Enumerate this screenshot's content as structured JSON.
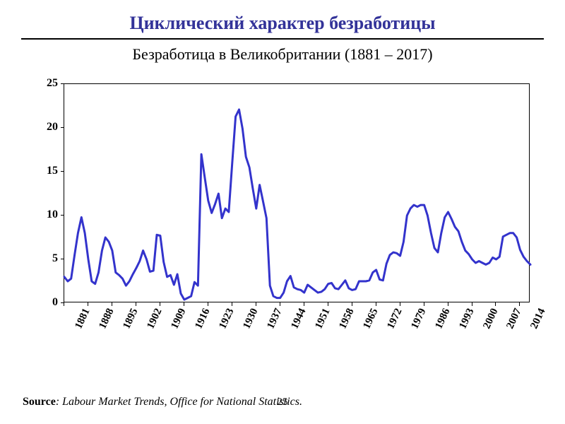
{
  "title": {
    "text": "Циклический характер безработицы",
    "color": "#333399",
    "fontsize": 26
  },
  "subtitle": {
    "text": "Безработица в Великобритании (1881 – 2017)",
    "color": "#000000",
    "fontsize": 22
  },
  "hr_color": "#000000",
  "page_number": "25",
  "source": {
    "label": "Source",
    "text": ": Labour Market Trends, Office for National Statistics."
  },
  "chart": {
    "type": "line",
    "background_color": "#ffffff",
    "border_color": "#000000",
    "line_color": "#3333cc",
    "line_width": 3,
    "ylim": [
      0,
      25
    ],
    "ytick_step": 5,
    "yticks": [
      0,
      5,
      10,
      15,
      20,
      25
    ],
    "ytick_fontsize": 16,
    "xlim": [
      1881,
      2017
    ],
    "xtick_step": 7,
    "xticks": [
      1881,
      1888,
      1895,
      1902,
      1909,
      1916,
      1923,
      1930,
      1937,
      1944,
      1951,
      1958,
      1965,
      1972,
      1979,
      1986,
      1993,
      2000,
      2007,
      2014
    ],
    "xtick_rotation": -65,
    "xtick_fontsize": 15,
    "series": [
      {
        "x": 1881,
        "y": 3.0
      },
      {
        "x": 1882,
        "y": 2.5
      },
      {
        "x": 1883,
        "y": 2.8
      },
      {
        "x": 1884,
        "y": 5.5
      },
      {
        "x": 1885,
        "y": 8.0
      },
      {
        "x": 1886,
        "y": 9.8
      },
      {
        "x": 1887,
        "y": 8.0
      },
      {
        "x": 1888,
        "y": 5.0
      },
      {
        "x": 1889,
        "y": 2.5
      },
      {
        "x": 1890,
        "y": 2.2
      },
      {
        "x": 1891,
        "y": 3.5
      },
      {
        "x": 1892,
        "y": 6.0
      },
      {
        "x": 1893,
        "y": 7.5
      },
      {
        "x": 1894,
        "y": 7.0
      },
      {
        "x": 1895,
        "y": 6.0
      },
      {
        "x": 1896,
        "y": 3.5
      },
      {
        "x": 1897,
        "y": 3.2
      },
      {
        "x": 1898,
        "y": 2.8
      },
      {
        "x": 1899,
        "y": 2.0
      },
      {
        "x": 1900,
        "y": 2.5
      },
      {
        "x": 1901,
        "y": 3.3
      },
      {
        "x": 1902,
        "y": 4.0
      },
      {
        "x": 1903,
        "y": 4.8
      },
      {
        "x": 1904,
        "y": 6.0
      },
      {
        "x": 1905,
        "y": 5.0
      },
      {
        "x": 1906,
        "y": 3.6
      },
      {
        "x": 1907,
        "y": 3.7
      },
      {
        "x": 1908,
        "y": 7.8
      },
      {
        "x": 1909,
        "y": 7.7
      },
      {
        "x": 1910,
        "y": 4.7
      },
      {
        "x": 1911,
        "y": 3.0
      },
      {
        "x": 1912,
        "y": 3.2
      },
      {
        "x": 1913,
        "y": 2.1
      },
      {
        "x": 1914,
        "y": 3.3
      },
      {
        "x": 1915,
        "y": 1.1
      },
      {
        "x": 1916,
        "y": 0.4
      },
      {
        "x": 1917,
        "y": 0.6
      },
      {
        "x": 1918,
        "y": 0.8
      },
      {
        "x": 1919,
        "y": 2.4
      },
      {
        "x": 1920,
        "y": 2.0
      },
      {
        "x": 1921,
        "y": 17.0
      },
      {
        "x": 1922,
        "y": 14.3
      },
      {
        "x": 1923,
        "y": 11.7
      },
      {
        "x": 1924,
        "y": 10.3
      },
      {
        "x": 1925,
        "y": 11.3
      },
      {
        "x": 1926,
        "y": 12.5
      },
      {
        "x": 1927,
        "y": 9.7
      },
      {
        "x": 1928,
        "y": 10.8
      },
      {
        "x": 1929,
        "y": 10.4
      },
      {
        "x": 1930,
        "y": 16.0
      },
      {
        "x": 1931,
        "y": 21.3
      },
      {
        "x": 1932,
        "y": 22.1
      },
      {
        "x": 1933,
        "y": 19.9
      },
      {
        "x": 1934,
        "y": 16.7
      },
      {
        "x": 1935,
        "y": 15.5
      },
      {
        "x": 1936,
        "y": 13.1
      },
      {
        "x": 1937,
        "y": 10.8
      },
      {
        "x": 1938,
        "y": 13.5
      },
      {
        "x": 1939,
        "y": 11.6
      },
      {
        "x": 1940,
        "y": 9.7
      },
      {
        "x": 1941,
        "y": 2.0
      },
      {
        "x": 1942,
        "y": 0.8
      },
      {
        "x": 1943,
        "y": 0.6
      },
      {
        "x": 1944,
        "y": 0.6
      },
      {
        "x": 1945,
        "y": 1.2
      },
      {
        "x": 1946,
        "y": 2.5
      },
      {
        "x": 1947,
        "y": 3.1
      },
      {
        "x": 1948,
        "y": 1.8
      },
      {
        "x": 1949,
        "y": 1.6
      },
      {
        "x": 1950,
        "y": 1.5
      },
      {
        "x": 1951,
        "y": 1.2
      },
      {
        "x": 1952,
        "y": 2.1
      },
      {
        "x": 1953,
        "y": 1.8
      },
      {
        "x": 1954,
        "y": 1.5
      },
      {
        "x": 1955,
        "y": 1.2
      },
      {
        "x": 1956,
        "y": 1.3
      },
      {
        "x": 1957,
        "y": 1.6
      },
      {
        "x": 1958,
        "y": 2.2
      },
      {
        "x": 1959,
        "y": 2.3
      },
      {
        "x": 1960,
        "y": 1.7
      },
      {
        "x": 1961,
        "y": 1.6
      },
      {
        "x": 1962,
        "y": 2.1
      },
      {
        "x": 1963,
        "y": 2.6
      },
      {
        "x": 1964,
        "y": 1.7
      },
      {
        "x": 1965,
        "y": 1.5
      },
      {
        "x": 1966,
        "y": 1.6
      },
      {
        "x": 1967,
        "y": 2.5
      },
      {
        "x": 1968,
        "y": 2.5
      },
      {
        "x": 1969,
        "y": 2.5
      },
      {
        "x": 1970,
        "y": 2.6
      },
      {
        "x": 1971,
        "y": 3.5
      },
      {
        "x": 1972,
        "y": 3.8
      },
      {
        "x": 1973,
        "y": 2.7
      },
      {
        "x": 1974,
        "y": 2.6
      },
      {
        "x": 1975,
        "y": 4.5
      },
      {
        "x": 1976,
        "y": 5.5
      },
      {
        "x": 1977,
        "y": 5.8
      },
      {
        "x": 1978,
        "y": 5.7
      },
      {
        "x": 1979,
        "y": 5.4
      },
      {
        "x": 1980,
        "y": 7.0
      },
      {
        "x": 1981,
        "y": 10.0
      },
      {
        "x": 1982,
        "y": 10.8
      },
      {
        "x": 1983,
        "y": 11.2
      },
      {
        "x": 1984,
        "y": 11.0
      },
      {
        "x": 1985,
        "y": 11.2
      },
      {
        "x": 1986,
        "y": 11.2
      },
      {
        "x": 1987,
        "y": 10.0
      },
      {
        "x": 1988,
        "y": 8.0
      },
      {
        "x": 1989,
        "y": 6.3
      },
      {
        "x": 1990,
        "y": 5.8
      },
      {
        "x": 1991,
        "y": 8.0
      },
      {
        "x": 1992,
        "y": 9.8
      },
      {
        "x": 1993,
        "y": 10.4
      },
      {
        "x": 1994,
        "y": 9.6
      },
      {
        "x": 1995,
        "y": 8.7
      },
      {
        "x": 1996,
        "y": 8.2
      },
      {
        "x": 1997,
        "y": 7.0
      },
      {
        "x": 1998,
        "y": 6.0
      },
      {
        "x": 1999,
        "y": 5.6
      },
      {
        "x": 2000,
        "y": 5.0
      },
      {
        "x": 2001,
        "y": 4.6
      },
      {
        "x": 2002,
        "y": 4.8
      },
      {
        "x": 2003,
        "y": 4.6
      },
      {
        "x": 2004,
        "y": 4.4
      },
      {
        "x": 2005,
        "y": 4.6
      },
      {
        "x": 2006,
        "y": 5.2
      },
      {
        "x": 2007,
        "y": 5.0
      },
      {
        "x": 2008,
        "y": 5.3
      },
      {
        "x": 2009,
        "y": 7.6
      },
      {
        "x": 2010,
        "y": 7.8
      },
      {
        "x": 2011,
        "y": 8.0
      },
      {
        "x": 2012,
        "y": 8.0
      },
      {
        "x": 2013,
        "y": 7.5
      },
      {
        "x": 2014,
        "y": 6.1
      },
      {
        "x": 2015,
        "y": 5.3
      },
      {
        "x": 2016,
        "y": 4.8
      },
      {
        "x": 2017,
        "y": 4.4
      }
    ]
  }
}
